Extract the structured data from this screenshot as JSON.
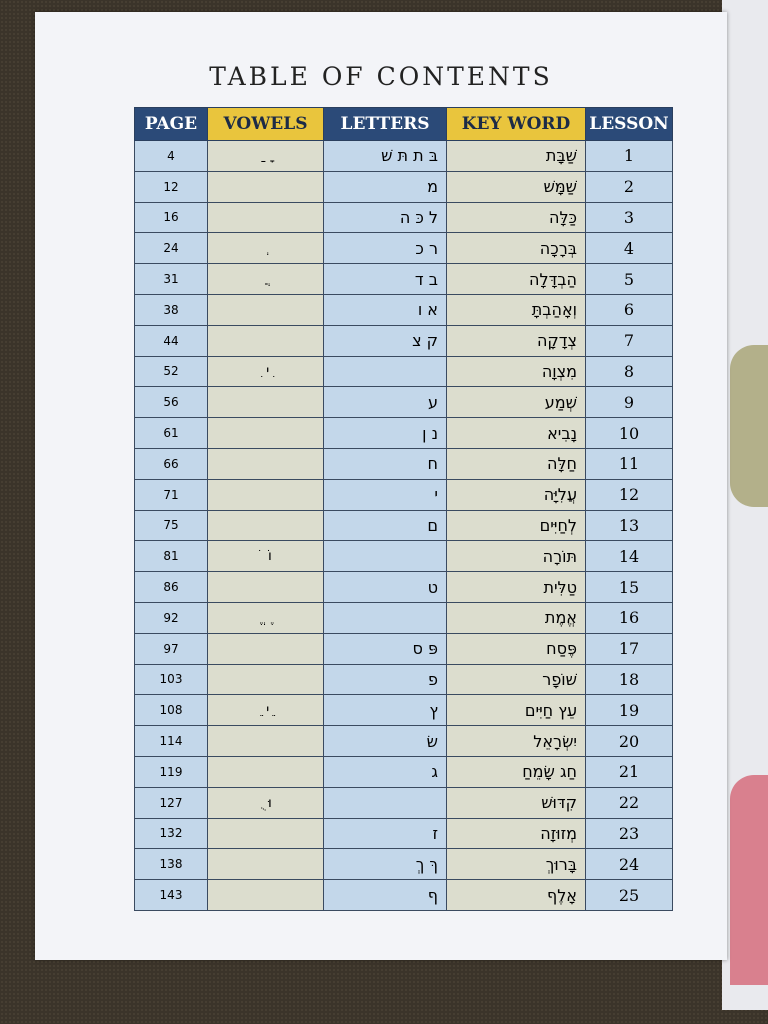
{
  "title": "TABLE OF CONTENTS",
  "headers": {
    "page": "PAGE",
    "vowels": "VOWELS",
    "letters": "LETTERS",
    "key_word": "KEY WORD",
    "lesson": "LESSON"
  },
  "colors": {
    "header_blue": "#2b4a78",
    "header_yellow": "#e9c53d",
    "cell_blue": "#c3d7ea",
    "cell_beige": "#dcddce"
  },
  "rows": [
    {
      "page": "4",
      "vowels": " ָ  ַ",
      "letters": "בּ ת תּ שׁ",
      "key_word": "שַׁבָּת",
      "lesson": "1"
    },
    {
      "page": "12",
      "vowels": "",
      "letters": "מ",
      "key_word": "שַׁמָּשׁ",
      "lesson": "2"
    },
    {
      "page": "16",
      "vowels": "",
      "letters": "ל כּ ה",
      "key_word": "כַּלָּה",
      "lesson": "3"
    },
    {
      "page": "24",
      "vowels": " ְ",
      "letters": "ר כ",
      "key_word": "בְּרָכָה",
      "lesson": "4"
    },
    {
      "page": "31",
      "vowels": " ֲ",
      "letters": "ב ד",
      "key_word": "הַבְדָּלָה",
      "lesson": "5"
    },
    {
      "page": "38",
      "vowels": "",
      "letters": "א ו",
      "key_word": "וְאָהַבְתָּ",
      "lesson": "6"
    },
    {
      "page": "44",
      "vowels": "",
      "letters": "ק צ",
      "key_word": "צְדָקָה",
      "lesson": "7"
    },
    {
      "page": "52",
      "vowels": " ִי  ִ",
      "letters": "",
      "key_word": "מִצְוָה",
      "lesson": "8"
    },
    {
      "page": "56",
      "vowels": "",
      "letters": "ע",
      "key_word": "שְׁמַע",
      "lesson": "9"
    },
    {
      "page": "61",
      "vowels": "",
      "letters": "נ ן",
      "key_word": "נָבִיא",
      "lesson": "10"
    },
    {
      "page": "66",
      "vowels": "",
      "letters": "ח",
      "key_word": "חַלָּה",
      "lesson": "11"
    },
    {
      "page": "71",
      "vowels": "",
      "letters": "י",
      "key_word": "עֲלִיָּה",
      "lesson": "12"
    },
    {
      "page": "75",
      "vowels": "",
      "letters": "ם",
      "key_word": "לְחַיִּים",
      "lesson": "13"
    },
    {
      "page": "81",
      "vowels": "וֹ  ֹ",
      "letters": "",
      "key_word": "תּוֹרָה",
      "lesson": "14"
    },
    {
      "page": "86",
      "vowels": "",
      "letters": "ט",
      "key_word": "טַלִּית",
      "lesson": "15"
    },
    {
      "page": "92",
      "vowels": " ֶ  ֱ",
      "letters": "",
      "key_word": "אֱמֶת",
      "lesson": "16"
    },
    {
      "page": "97",
      "vowels": "",
      "letters": "פּ ס",
      "key_word": "פֶּסַח",
      "lesson": "17"
    },
    {
      "page": "103",
      "vowels": "",
      "letters": "פ",
      "key_word": "שׁוֹפָר",
      "lesson": "18"
    },
    {
      "page": "108",
      "vowels": " ֵי  ֵ",
      "letters": "ץ",
      "key_word": "עֵץ חַיִּים",
      "lesson": "19"
    },
    {
      "page": "114",
      "vowels": "",
      "letters": "שׂ",
      "key_word": "יִשְׂרָאֵל",
      "lesson": "20"
    },
    {
      "page": "119",
      "vowels": "",
      "letters": "ג",
      "key_word": "חַג שָׂמֵחַ",
      "lesson": "21"
    },
    {
      "page": "127",
      "vowels": "וּ  ֻ",
      "letters": "",
      "key_word": "קִדּוּשׁ",
      "lesson": "22"
    },
    {
      "page": "132",
      "vowels": "",
      "letters": "ז",
      "key_word": "מְזוּזָה",
      "lesson": "23"
    },
    {
      "page": "138",
      "vowels": "",
      "letters": "ךּ ךְ",
      "key_word": "בָּרוּךְ",
      "lesson": "24"
    },
    {
      "page": "143",
      "vowels": "",
      "letters": "ף",
      "key_word": "אָלֶף",
      "lesson": "25"
    }
  ]
}
